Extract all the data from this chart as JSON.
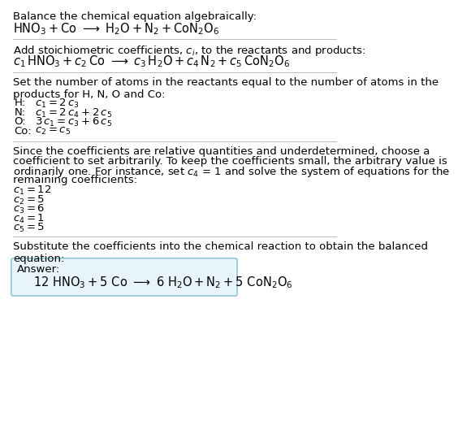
{
  "title_line1": "Balance the chemical equation algebraically:",
  "formula1": "$\\mathrm{HNO_3 + Co\\ \\longrightarrow\\ H_2O + N_2 + CoN_2O_6}$",
  "sec2_line1a": "Add stoichiometric coefficients, ",
  "sec2_line1b": "$\\mathit{c_i}$",
  "sec2_line1c": ", to the reactants and products:",
  "formula2": "$\\mathit{c_1}\\,\\mathrm{HNO_3} + \\mathit{c_2}\\,\\mathrm{Co}\\ \\longrightarrow\\ \\mathit{c_3}\\,\\mathrm{H_2O} + \\mathit{c_4}\\,\\mathrm{N_2} + \\mathit{c_5}\\,\\mathrm{CoN_2O_6}$",
  "sec3_header": "Set the number of atoms in the reactants equal to the number of atoms in the\nproducts for H, N, O and Co:",
  "eq_labels": [
    "H:",
    "N:",
    "O:",
    "Co:"
  ],
  "eq_formulas": [
    "$\\mathit{c_1} = 2\\,\\mathit{c_3}$",
    "$\\mathit{c_1} = 2\\,\\mathit{c_4} + 2\\,\\mathit{c_5}$",
    "$3\\,\\mathit{c_1} = \\mathit{c_3} + 6\\,\\mathit{c_5}$",
    "$\\mathit{c_2} = \\mathit{c_5}$"
  ],
  "sec4_line1": "Since the coefficients are relative quantities and underdetermined, choose a",
  "sec4_line2": "coefficient to set arbitrarily. To keep the coefficients small, the arbitrary value is",
  "sec4_line3a": "ordinarily one. For instance, set ",
  "sec4_line3b": "$\\mathit{c_4}$",
  "sec4_line3c": " = 1 and solve the system of equations for the",
  "sec4_line4": "remaining coefficients:",
  "coeff_lines": [
    "$\\mathit{c_1} = 12$",
    "$\\mathit{c_2} = 5$",
    "$\\mathit{c_3} = 6$",
    "$\\mathit{c_4} = 1$",
    "$\\mathit{c_5} = 5$"
  ],
  "sec5_text": "Substitute the coefficients into the chemical reaction to obtain the balanced\nequation:",
  "answer_label": "Answer:",
  "answer_formula": "$\\mathrm{12\\ HNO_3 + 5\\ Co\\ \\longrightarrow\\ 6\\ H_2O + N_2 + 5\\ CoN_2O_6}$",
  "bg_color": "#ffffff",
  "text_color": "#000000",
  "box_fill": "#e8f4fb",
  "box_edge": "#7fbfcf",
  "hr_color": "#bbbbbb",
  "fs": 9.5,
  "fs_formula": 10.5
}
